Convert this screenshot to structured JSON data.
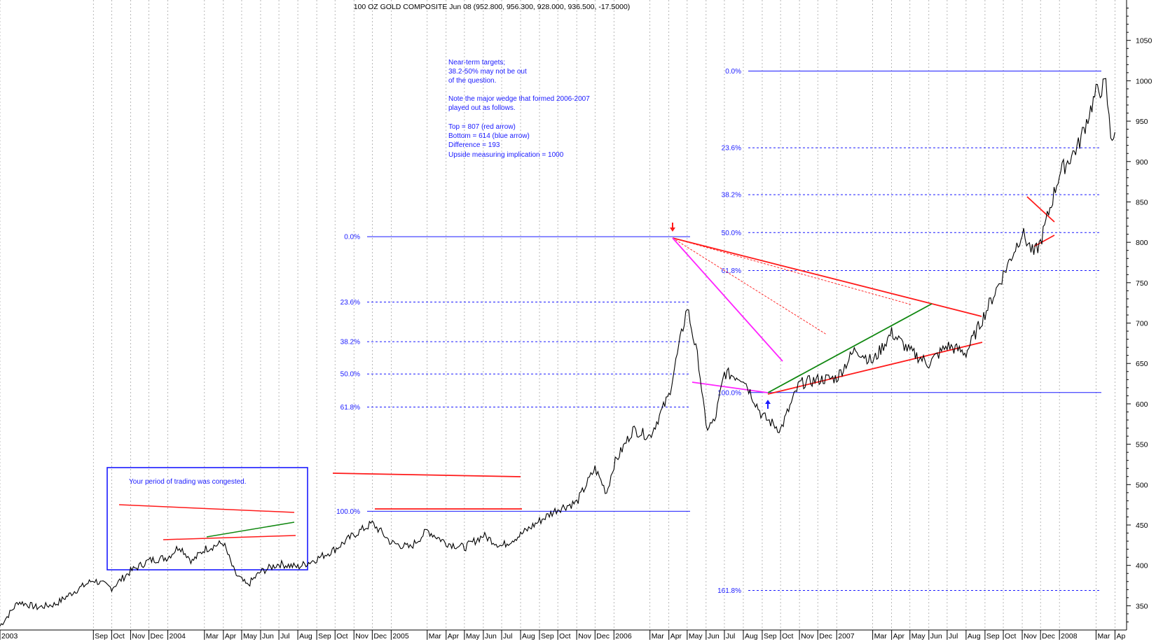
{
  "chart_data": {
    "type": "line",
    "title": "100 OZ GOLD COMPOSITE Jun 08 (952.800, 956.300, 928.000, 936.500, -17.5000)",
    "ylim": [
      320,
      1100
    ],
    "xlim": [
      "2003-04-01",
      "2008-04-20"
    ],
    "grid": "vertical dotted at month boundaries",
    "y_ticks": [
      350,
      400,
      450,
      500,
      550,
      600,
      650,
      700,
      750,
      800,
      850,
      900,
      950,
      1000,
      1050
    ],
    "x_ticks": [
      {
        "label": "2003",
        "date": "2003-04-01"
      },
      {
        "label": "Sep",
        "date": "2003-09-01"
      },
      {
        "label": "Oct",
        "date": "2003-10-01"
      },
      {
        "label": "Nov",
        "date": "2003-11-01"
      },
      {
        "label": "Dec",
        "date": "2003-12-01"
      },
      {
        "label": "2004",
        "date": "2004-01-01"
      },
      {
        "label": "Mar",
        "date": "2004-03-01"
      },
      {
        "label": "Apr",
        "date": "2004-04-01"
      },
      {
        "label": "May",
        "date": "2004-05-01"
      },
      {
        "label": "Jun",
        "date": "2004-06-01"
      },
      {
        "label": "Jul",
        "date": "2004-07-01"
      },
      {
        "label": "Aug",
        "date": "2004-08-01"
      },
      {
        "label": "Sep",
        "date": "2004-09-01"
      },
      {
        "label": "Oct",
        "date": "2004-10-01"
      },
      {
        "label": "Nov",
        "date": "2004-11-01"
      },
      {
        "label": "Dec",
        "date": "2004-12-01"
      },
      {
        "label": "2005",
        "date": "2005-01-01"
      },
      {
        "label": "Mar",
        "date": "2005-03-01"
      },
      {
        "label": "Apr",
        "date": "2005-04-01"
      },
      {
        "label": "May",
        "date": "2005-05-01"
      },
      {
        "label": "Jun",
        "date": "2005-06-01"
      },
      {
        "label": "Jul",
        "date": "2005-07-01"
      },
      {
        "label": "Aug",
        "date": "2005-08-01"
      },
      {
        "label": "Sep",
        "date": "2005-09-01"
      },
      {
        "label": "Oct",
        "date": "2005-10-01"
      },
      {
        "label": "Nov",
        "date": "2005-11-01"
      },
      {
        "label": "Dec",
        "date": "2005-12-01"
      },
      {
        "label": "2006",
        "date": "2006-01-01"
      },
      {
        "label": "Mar",
        "date": "2006-03-01"
      },
      {
        "label": "Apr",
        "date": "2006-04-01"
      },
      {
        "label": "May",
        "date": "2006-05-01"
      },
      {
        "label": "Jun",
        "date": "2006-06-01"
      },
      {
        "label": "Jul",
        "date": "2006-07-01"
      },
      {
        "label": "Aug",
        "date": "2006-08-01"
      },
      {
        "label": "Sep",
        "date": "2006-09-01"
      },
      {
        "label": "Oct",
        "date": "2006-10-01"
      },
      {
        "label": "Nov",
        "date": "2006-11-01"
      },
      {
        "label": "Dec",
        "date": "2006-12-01"
      },
      {
        "label": "2007",
        "date": "2007-01-01"
      },
      {
        "label": "Mar",
        "date": "2007-03-01"
      },
      {
        "label": "Apr",
        "date": "2007-04-01"
      },
      {
        "label": "May",
        "date": "2007-05-01"
      },
      {
        "label": "Jun",
        "date": "2007-06-01"
      },
      {
        "label": "Jul",
        "date": "2007-07-01"
      },
      {
        "label": "Aug",
        "date": "2007-08-01"
      },
      {
        "label": "Sep",
        "date": "2007-09-01"
      },
      {
        "label": "Oct",
        "date": "2007-10-01"
      },
      {
        "label": "Nov",
        "date": "2007-11-01"
      },
      {
        "label": "Dec",
        "date": "2007-12-01"
      },
      {
        "label": "2008",
        "date": "2008-01-01"
      },
      {
        "label": "Mar",
        "date": "2008-03-01"
      },
      {
        "label": "Ap",
        "date": "2008-04-01"
      }
    ],
    "series": [
      {
        "color": "#000000",
        "points": [
          [
            "2003-04-01",
            325
          ],
          [
            "2003-05-01",
            355
          ],
          [
            "2003-06-01",
            348
          ],
          [
            "2003-07-01",
            352
          ],
          [
            "2003-08-01",
            368
          ],
          [
            "2003-09-01",
            382
          ],
          [
            "2003-10-01",
            372
          ],
          [
            "2003-11-01",
            393
          ],
          [
            "2003-12-01",
            406
          ],
          [
            "2004-01-01",
            410
          ],
          [
            "2004-01-20",
            424
          ],
          [
            "2004-02-10",
            405
          ],
          [
            "2004-03-01",
            420
          ],
          [
            "2004-04-01",
            428
          ],
          [
            "2004-04-20",
            390
          ],
          [
            "2004-05-10",
            375
          ],
          [
            "2004-06-01",
            392
          ],
          [
            "2004-07-01",
            402
          ],
          [
            "2004-08-01",
            398
          ],
          [
            "2004-09-01",
            408
          ],
          [
            "2004-10-01",
            420
          ],
          [
            "2004-11-01",
            438
          ],
          [
            "2004-12-01",
            452
          ],
          [
            "2004-12-20",
            438
          ],
          [
            "2005-01-01",
            428
          ],
          [
            "2005-02-01",
            422
          ],
          [
            "2005-03-01",
            443
          ],
          [
            "2005-04-01",
            428
          ],
          [
            "2005-05-01",
            422
          ],
          [
            "2005-06-01",
            437
          ],
          [
            "2005-07-01",
            424
          ],
          [
            "2005-08-01",
            438
          ],
          [
            "2005-09-01",
            455
          ],
          [
            "2005-10-01",
            470
          ],
          [
            "2005-11-01",
            478
          ],
          [
            "2005-12-01",
            520
          ],
          [
            "2005-12-20",
            490
          ],
          [
            "2006-01-01",
            525
          ],
          [
            "2006-02-01",
            568
          ],
          [
            "2006-03-01",
            560
          ],
          [
            "2006-04-01",
            610
          ],
          [
            "2006-05-01",
            720
          ],
          [
            "2006-05-20",
            650
          ],
          [
            "2006-06-01",
            570
          ],
          [
            "2006-06-15",
            578
          ],
          [
            "2006-07-01",
            638
          ],
          [
            "2006-08-01",
            632
          ],
          [
            "2006-09-01",
            585
          ],
          [
            "2006-10-01",
            568
          ],
          [
            "2006-11-01",
            625
          ],
          [
            "2006-12-01",
            630
          ],
          [
            "2007-01-01",
            632
          ],
          [
            "2007-02-01",
            668
          ],
          [
            "2007-03-01",
            652
          ],
          [
            "2007-04-01",
            688
          ],
          [
            "2007-05-01",
            665
          ],
          [
            "2007-06-01",
            650
          ],
          [
            "2007-07-01",
            672
          ],
          [
            "2007-08-01",
            663
          ],
          [
            "2007-09-01",
            712
          ],
          [
            "2007-10-01",
            760
          ],
          [
            "2007-11-01",
            812
          ],
          [
            "2007-11-20",
            785
          ],
          [
            "2007-12-01",
            800
          ],
          [
            "2008-01-01",
            885
          ],
          [
            "2008-02-01",
            920
          ],
          [
            "2008-03-01",
            985
          ],
          [
            "2008-03-17",
            995
          ],
          [
            "2008-03-25",
            930
          ],
          [
            "2008-04-01",
            936.5
          ]
        ]
      }
    ],
    "annotations": [
      "Near-term targets;",
      "38.2-50% may not be out",
      "of the question.",
      "Note the major wedge that formed 2006-2007",
      "played out as follows.",
      "Top = 807 (red arrow)",
      "Bottom = 614 (blue arrow)",
      "Difference = 193",
      "Upside measuring implication = 1000",
      "Your period of trading was congested."
    ],
    "fib_sets": [
      {
        "levels": [
          {
            "label": "0.0%",
            "value": 807
          },
          {
            "label": "23.6%",
            "value": 726
          },
          {
            "label": "38.2%",
            "value": 677
          },
          {
            "label": "50.0%",
            "value": 637
          },
          {
            "label": "61.8%",
            "value": 596
          },
          {
            "label": "100.0%",
            "value": 467
          }
        ]
      },
      {
        "levels": [
          {
            "label": "0.0%",
            "value": 1012
          },
          {
            "label": "23.6%",
            "value": 917
          },
          {
            "label": "38.2%",
            "value": 859
          },
          {
            "label": "50.0%",
            "value": 812
          },
          {
            "label": "61.8%",
            "value": 765
          },
          {
            "label": "100.0%",
            "value": 614
          },
          {
            "label": "161.8%",
            "value": 369
          }
        ]
      }
    ],
    "colors": {
      "price": "#000000",
      "fib": "#1a1aff",
      "trend_red": "#ff1a1a",
      "trend_green": "#118811",
      "trend_magenta": "#ff22ff",
      "box": "#1a1aff"
    }
  }
}
